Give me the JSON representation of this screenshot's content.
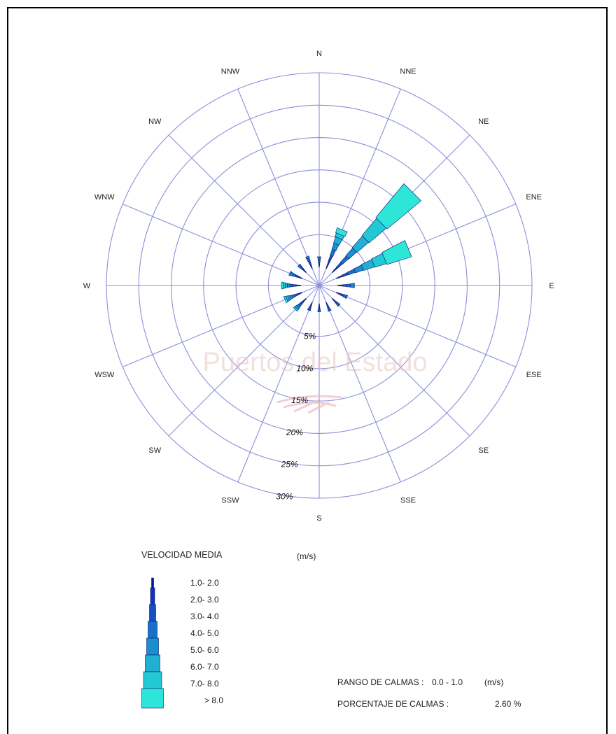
{
  "chart_data": {
    "type": "windrose",
    "directions": [
      "N",
      "NNE",
      "NE",
      "ENE",
      "E",
      "ESE",
      "SE",
      "SSE",
      "S",
      "SSW",
      "SW",
      "WSW",
      "W",
      "WNW",
      "NW",
      "NNW"
    ],
    "ring_labels": [
      "5%",
      "10%",
      "15%",
      "20%",
      "25%",
      "30%"
    ],
    "rmax_percent": 30,
    "calm_hole_percent": 2.6,
    "speed_bins": [
      "1.0- 2.0",
      "2.0- 3.0",
      "3.0- 4.0",
      "4.0- 5.0",
      "5.0- 6.0",
      "6.0- 7.0",
      "7.0- 8.0",
      "> 8.0"
    ],
    "bin_colors": [
      "#0a1590",
      "#1232b8",
      "#1550c4",
      "#1a6fc8",
      "#1b8fce",
      "#1fb0d2",
      "#22c8d4",
      "#2ee6d8"
    ],
    "bin_width_deg": [
      2.0,
      3.0,
      4.2,
      5.4,
      6.6,
      7.8,
      9.0,
      10.5
    ],
    "series": [
      {
        "direction": "N",
        "values": [
          0.3,
          0.4,
          0.4,
          0.3,
          0.2,
          0.0,
          0.0,
          0.0
        ]
      },
      {
        "direction": "NNE",
        "values": [
          0.4,
          0.7,
          1.0,
          1.0,
          1.0,
          1.0,
          0.6,
          0.8
        ]
      },
      {
        "direction": "NE",
        "values": [
          0.4,
          0.6,
          1.0,
          1.3,
          1.6,
          2.4,
          3.5,
          6.8
        ]
      },
      {
        "direction": "ENE",
        "values": [
          0.4,
          0.6,
          0.9,
          1.2,
          1.3,
          1.8,
          1.9,
          4.0
        ]
      },
      {
        "direction": "E",
        "values": [
          0.3,
          0.5,
          0.6,
          0.6,
          0.4,
          0.2,
          0.0,
          0.0
        ]
      },
      {
        "direction": "ESE",
        "values": [
          0.3,
          0.4,
          0.5,
          0.4,
          0.2,
          0.0,
          0.0,
          0.0
        ]
      },
      {
        "direction": "SE",
        "values": [
          0.3,
          0.4,
          0.4,
          0.3,
          0.1,
          0.0,
          0.0,
          0.0
        ]
      },
      {
        "direction": "SSE",
        "values": [
          0.3,
          0.3,
          0.4,
          0.3,
          0.1,
          0.0,
          0.0,
          0.0
        ]
      },
      {
        "direction": "S",
        "values": [
          0.3,
          0.3,
          0.3,
          0.2,
          0.1,
          0.0,
          0.0,
          0.0
        ]
      },
      {
        "direction": "SSW",
        "values": [
          0.3,
          0.3,
          0.3,
          0.3,
          0.1,
          0.0,
          0.0,
          0.0
        ]
      },
      {
        "direction": "SW",
        "values": [
          0.3,
          0.4,
          0.4,
          0.4,
          0.3,
          0.3,
          0.3,
          0.0
        ]
      },
      {
        "direction": "WSW",
        "values": [
          0.3,
          0.4,
          0.5,
          0.4,
          0.4,
          0.3,
          0.3,
          0.3
        ]
      },
      {
        "direction": "W",
        "values": [
          0.3,
          0.4,
          0.5,
          0.5,
          0.4,
          0.3,
          0.3,
          0.3
        ]
      },
      {
        "direction": "WNW",
        "values": [
          0.3,
          0.4,
          0.5,
          0.4,
          0.3,
          0.2,
          0.0,
          0.0
        ]
      },
      {
        "direction": "NW",
        "values": [
          0.3,
          0.4,
          0.4,
          0.3,
          0.2,
          0.0,
          0.0,
          0.0
        ]
      },
      {
        "direction": "NNW",
        "values": [
          0.3,
          0.4,
          0.5,
          0.5,
          0.3,
          0.0,
          0.0,
          0.0
        ]
      }
    ],
    "grid_color": "#8a8fd8"
  },
  "watermark": "Puertos del Estado",
  "legend": {
    "title": "VELOCIDAD MEDIA",
    "units": "(m/s)"
  },
  "calms": {
    "range_label": "RANGO DE CALMAS :",
    "range_value": "0.0 -  1.0",
    "range_units": "(m/s)",
    "percent_label": "PORCENTAJE DE CALMAS :",
    "percent_value": "2.60 %"
  }
}
